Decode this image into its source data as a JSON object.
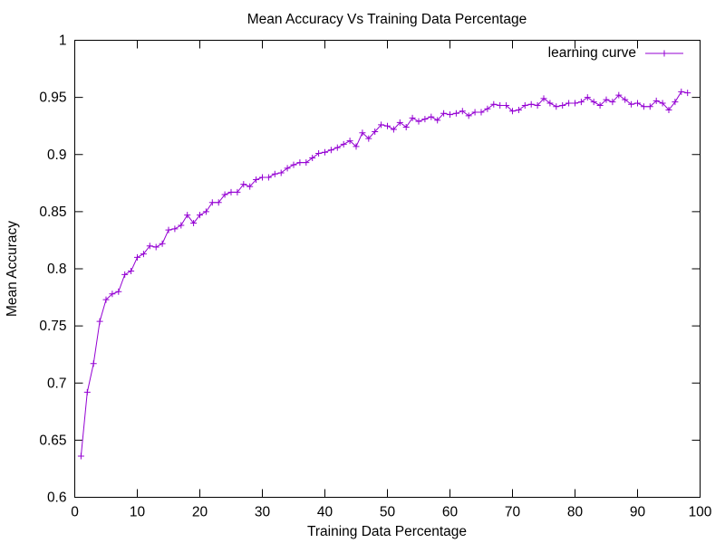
{
  "chart_data": {
    "type": "line",
    "title": "Mean Accuracy Vs Training Data Percentage",
    "xlabel": "Training Data Percentage",
    "ylabel": "Mean Accuracy",
    "xlim": [
      0,
      100
    ],
    "ylim": [
      0.6,
      1.0
    ],
    "xticks": [
      0,
      10,
      20,
      30,
      40,
      50,
      60,
      70,
      80,
      90,
      100
    ],
    "yticks": [
      0.6,
      0.65,
      0.7,
      0.75,
      0.8,
      0.85,
      0.9,
      0.95,
      1
    ],
    "xtick_labels": [
      "0",
      "10",
      "20",
      "30",
      "40",
      "50",
      "60",
      "70",
      "80",
      "90",
      "100"
    ],
    "ytick_labels": [
      "0.6",
      "0.65",
      "0.7",
      "0.75",
      "0.8",
      "0.85",
      "0.9",
      "0.95",
      "1"
    ],
    "grid": false,
    "legend_position": "top-right",
    "series": [
      {
        "name": "learning curve",
        "color": "#9400d3",
        "marker": "plus",
        "x": [
          1,
          2,
          3,
          4,
          5,
          6,
          7,
          8,
          9,
          10,
          11,
          12,
          13,
          14,
          15,
          16,
          17,
          18,
          19,
          20,
          21,
          22,
          23,
          24,
          25,
          26,
          27,
          28,
          29,
          30,
          31,
          32,
          33,
          34,
          35,
          36,
          37,
          38,
          39,
          40,
          41,
          42,
          43,
          44,
          45,
          46,
          47,
          48,
          49,
          50,
          51,
          52,
          53,
          54,
          55,
          56,
          57,
          58,
          59,
          60,
          61,
          62,
          63,
          64,
          65,
          66,
          67,
          68,
          69,
          70,
          71,
          72,
          73,
          74,
          75,
          76,
          77,
          78,
          79,
          80,
          81,
          82,
          83,
          84,
          85,
          86,
          87,
          88,
          89,
          90,
          91,
          92,
          93,
          94,
          95,
          96,
          97,
          98
        ],
        "y": [
          0.636,
          0.692,
          0.717,
          0.754,
          0.773,
          0.778,
          0.78,
          0.795,
          0.798,
          0.81,
          0.813,
          0.82,
          0.819,
          0.822,
          0.834,
          0.835,
          0.838,
          0.847,
          0.84,
          0.847,
          0.85,
          0.858,
          0.858,
          0.865,
          0.867,
          0.867,
          0.874,
          0.872,
          0.878,
          0.88,
          0.88,
          0.883,
          0.884,
          0.888,
          0.891,
          0.893,
          0.893,
          0.897,
          0.901,
          0.902,
          0.904,
          0.906,
          0.909,
          0.912,
          0.907,
          0.919,
          0.914,
          0.92,
          0.926,
          0.925,
          0.922,
          0.928,
          0.924,
          0.932,
          0.929,
          0.931,
          0.933,
          0.93,
          0.936,
          0.935,
          0.936,
          0.938,
          0.934,
          0.937,
          0.937,
          0.94,
          0.944,
          0.943,
          0.943,
          0.938,
          0.939,
          0.943,
          0.944,
          0.943,
          0.949,
          0.945,
          0.942,
          0.943,
          0.945,
          0.945,
          0.946,
          0.95,
          0.946,
          0.943,
          0.948,
          0.946,
          0.952,
          0.948,
          0.944,
          0.945,
          0.942,
          0.942,
          0.947,
          0.945,
          0.939,
          0.946,
          0.955,
          0.954
        ]
      }
    ]
  }
}
